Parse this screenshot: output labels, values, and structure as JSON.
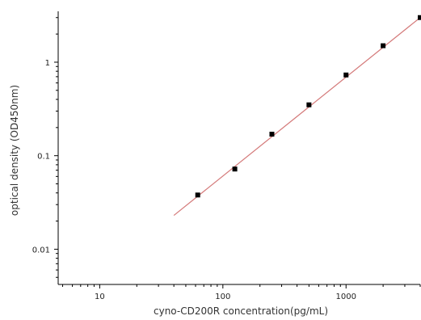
{
  "chart_data": {
    "type": "scatter",
    "title": "",
    "xlabel": "cyno-CD200R concentration(pg/mL)",
    "ylabel": "optical density (OD450nm)",
    "xscale": "log",
    "yscale": "log",
    "xlim": [
      4.6,
      4000
    ],
    "ylim": [
      0.0042,
      3.5
    ],
    "xticks": [
      {
        "value": 10,
        "label": "10"
      },
      {
        "value": 100,
        "label": "100"
      },
      {
        "value": 1000,
        "label": "1000"
      }
    ],
    "yticks": [
      {
        "value": 0.01,
        "label": "0.01"
      },
      {
        "value": 0.1,
        "label": "0.1"
      },
      {
        "value": 1,
        "label": "1"
      }
    ],
    "grid": false,
    "legend": "none",
    "series": [
      {
        "x": [
          62.5,
          125,
          250,
          500,
          1000,
          2000,
          4000
        ],
        "y": [
          0.038,
          0.072,
          0.17,
          0.35,
          0.73,
          1.5,
          3.0
        ],
        "marker": "square",
        "color": "#000000"
      }
    ],
    "fit_line": {
      "x": [
        40,
        4000
      ],
      "y": [
        0.023,
        3.0
      ],
      "color": "#d47a7a"
    }
  }
}
